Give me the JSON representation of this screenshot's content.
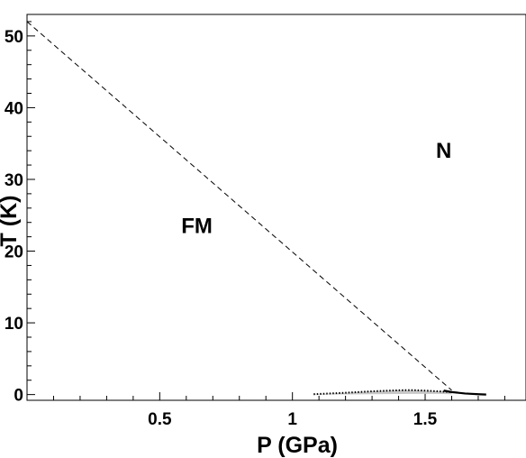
{
  "chart_data": {
    "type": "line",
    "xlabel": "P (GPa)",
    "ylabel": "T (K)",
    "xlim": [
      0,
      1.88
    ],
    "ylim": [
      -0.8,
      53
    ],
    "x_ticks": [
      "0.5",
      "1",
      "1.5"
    ],
    "y_ticks": [
      "0",
      "10",
      "20",
      "30",
      "40",
      "50"
    ],
    "grid": false,
    "annotations": [
      {
        "text": "FM",
        "x": 0.64,
        "y": 22.5
      },
      {
        "text": "N",
        "x": 1.57,
        "y": 33
      }
    ],
    "series": [
      {
        "style": "dashed",
        "x": [
          0.0,
          1.6
        ],
        "y": [
          52.0,
          0.6
        ]
      },
      {
        "style": "dotted",
        "x": [
          1.08,
          1.2,
          1.3,
          1.4,
          1.45,
          1.5,
          1.55,
          1.6
        ],
        "y": [
          0.05,
          0.25,
          0.45,
          0.6,
          0.62,
          0.55,
          0.45,
          0.35
        ]
      },
      {
        "style": "solid",
        "x": [
          1.57,
          1.6,
          1.65,
          1.7,
          1.73
        ],
        "y": [
          0.55,
          0.35,
          0.15,
          0.05,
          0.0
        ]
      }
    ],
    "shaded_region": {
      "x": [
        1.08,
        1.2,
        1.3,
        1.4,
        1.45,
        1.5,
        1.55,
        1.6
      ],
      "y_upper": [
        0.05,
        0.25,
        0.45,
        0.6,
        0.62,
        0.55,
        0.45,
        0.35
      ],
      "y_lower": [
        0.0,
        0.02,
        0.05,
        0.08,
        0.1,
        0.1,
        0.1,
        0.05
      ],
      "color": "#c8c8c8"
    }
  }
}
